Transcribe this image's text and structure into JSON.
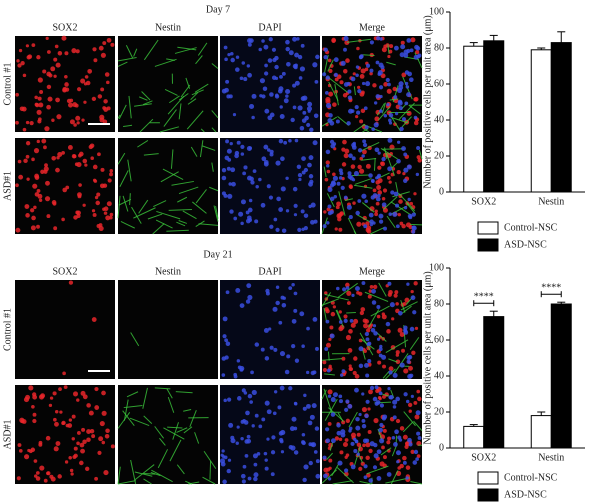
{
  "figure": {
    "panels": [
      {
        "day": "Day 7",
        "columns": [
          "SOX2",
          "Nestin",
          "DAPI",
          "Merge"
        ],
        "rows": [
          "Control #1",
          "ASD#1"
        ]
      },
      {
        "day": "Day 21",
        "columns": [
          "SOX2",
          "Nestin",
          "DAPI",
          "Merge"
        ],
        "rows": [
          "Control #1",
          "ASD#1"
        ]
      }
    ]
  },
  "chart_data": [
    {
      "type": "bar",
      "ylabel": "Number of positive cells per unit area (μm)",
      "categories": [
        "SOX2",
        "Nestin"
      ],
      "series": [
        {
          "name": "Control-NSC",
          "color": "#ffffff",
          "values": [
            81,
            79
          ],
          "errors": [
            2,
            1
          ]
        },
        {
          "name": "ASD-NSC",
          "color": "#000000",
          "values": [
            84,
            83
          ],
          "errors": [
            3,
            6
          ]
        }
      ],
      "ylim": [
        0,
        100
      ],
      "yticks": [
        0,
        20,
        40,
        60,
        80,
        100
      ]
    },
    {
      "type": "bar",
      "ylabel": "Number of positive cells per unit area (μm)",
      "categories": [
        "SOX2",
        "Nestin"
      ],
      "series": [
        {
          "name": "Control-NSC",
          "color": "#ffffff",
          "values": [
            12,
            18
          ],
          "errors": [
            1,
            2
          ]
        },
        {
          "name": "ASD-NSC",
          "color": "#000000",
          "values": [
            73,
            80
          ],
          "errors": [
            3,
            1
          ]
        }
      ],
      "annotations": [
        "****",
        "****"
      ],
      "ylim": [
        0,
        100
      ],
      "yticks": [
        0,
        20,
        40,
        60,
        80,
        100
      ]
    }
  ]
}
